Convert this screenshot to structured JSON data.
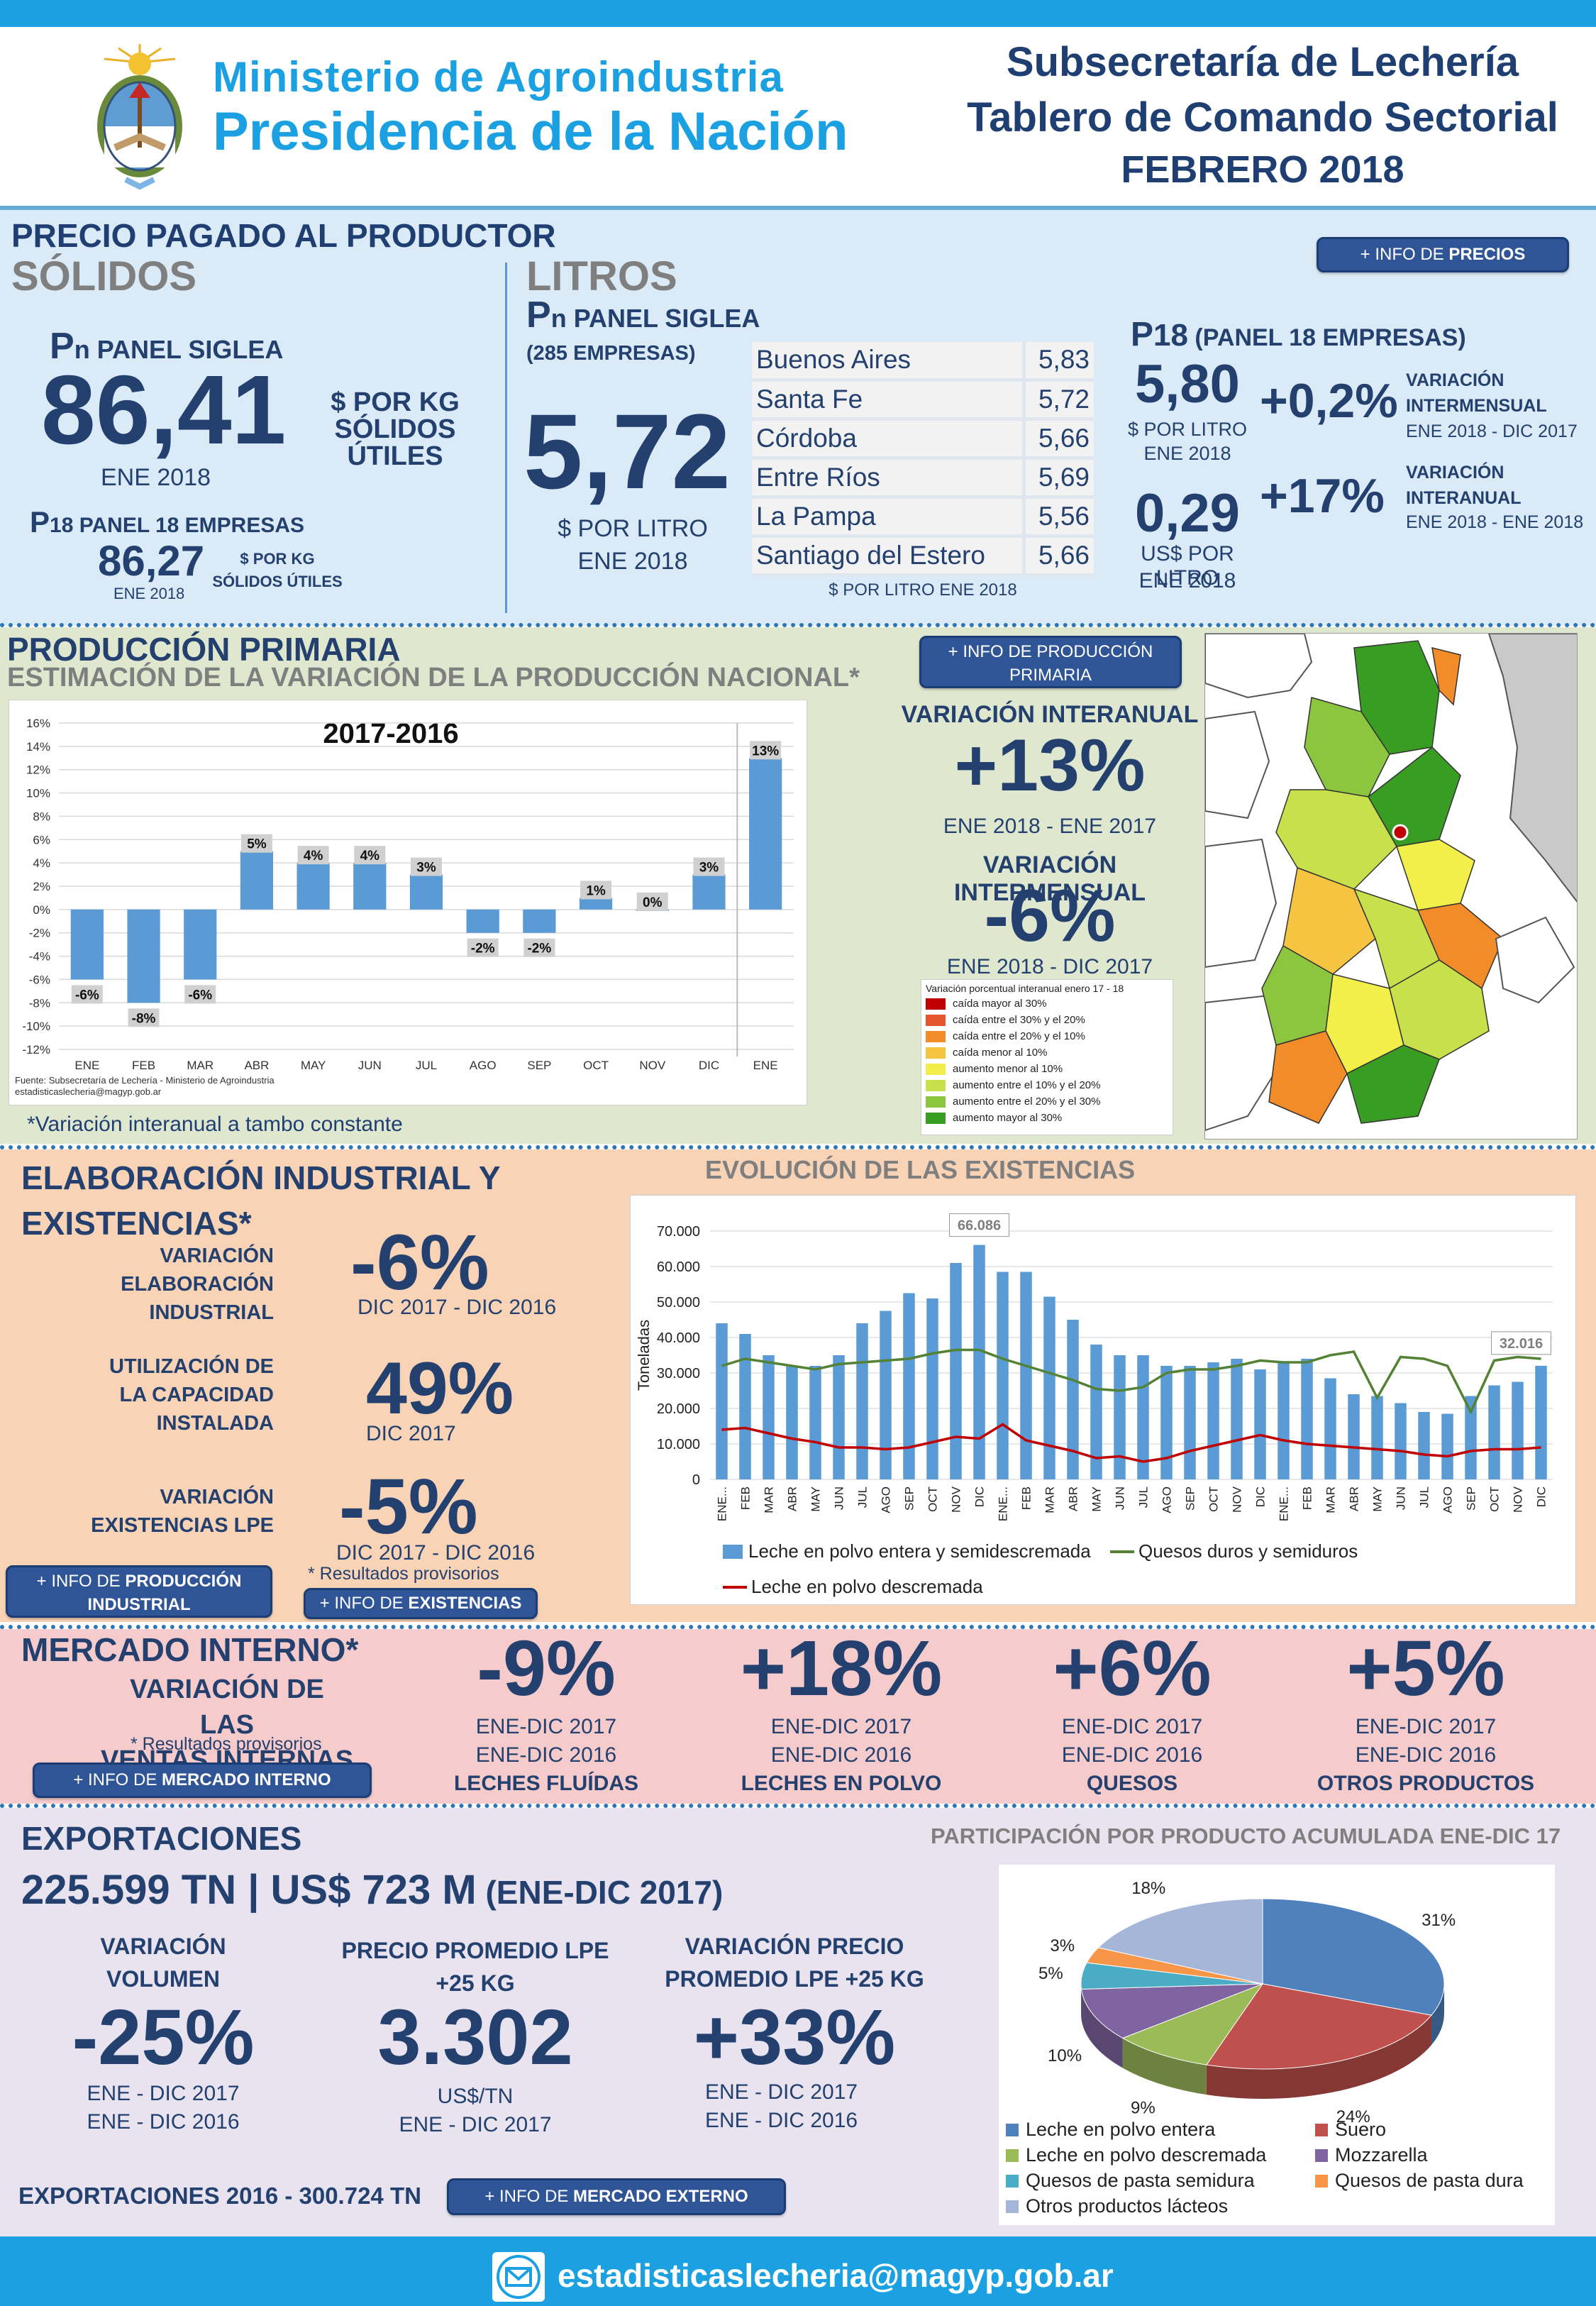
{
  "colors": {
    "banner": "#1ba1e2",
    "header_blue": "#1f3f73",
    "precio_bg": "#daeaf6",
    "prod_bg": "#dfe8cf",
    "ind_bg": "#f9d3b6",
    "mercado_bg": "#f6cbcb",
    "export_bg": "#e8e3ee",
    "bar_blue": "#5b9bd5"
  },
  "header": {
    "ministry_line1": "Ministerio de Agroindustria",
    "ministry_line2": "Presidencia de la Nación",
    "title_line1": "Subsecretaría de Lechería",
    "title_line2": "Tablero de Comando Sectorial",
    "title_line3": "FEBRERO 2018"
  },
  "precio": {
    "heading": "PRECIO PAGADO AL PRODUCTOR",
    "info_button_prefix": "+ INFO DE ",
    "info_button_bold": "PRECIOS",
    "solidos": {
      "title": "SÓLIDOS",
      "pn_label_p": "P",
      "pn_label_n": "n",
      "pn_label_rest": " PANEL SIGLEA",
      "value": "86,41",
      "unit_line1": "$ POR KG",
      "unit_line2": "SÓLIDOS ÚTILES",
      "period": "ENE 2018",
      "p18_p": "P",
      "p18_sub": "18",
      "p18_rest": " PANEL 18 EMPRESAS",
      "p18_value": "86,27",
      "p18_unit1": "$ POR KG",
      "p18_unit2": "SÓLIDOS ÚTILES",
      "p18_period": "ENE 2018"
    },
    "litros": {
      "title": "LITROS",
      "pn_p": "P",
      "pn_n": "n",
      "pn_rest": " PANEL SIGLEA",
      "empresas": "(285 EMPRESAS)",
      "value": "5,72",
      "unit": "$ POR LITRO",
      "period": "ENE 2018",
      "provinces": [
        {
          "name": "Buenos Aires",
          "value": "5,83"
        },
        {
          "name": "Santa Fe",
          "value": "5,72"
        },
        {
          "name": "Córdoba",
          "value": "5,66"
        },
        {
          "name": "Entre Ríos",
          "value": "5,69"
        },
        {
          "name": "La Pampa",
          "value": "5,56"
        },
        {
          "name": "Santiago del Estero",
          "value": "5,66"
        }
      ],
      "table_note": "$ POR LITRO ENE 2018"
    },
    "p18": {
      "label_p": "P",
      "label_sub": "18",
      "label_rest": " (PANEL 18 EMPRESAS)",
      "v1": "5,80",
      "v1_unit": "$ POR LITRO",
      "v1_period": "ENE 2018",
      "v2": "0,29",
      "v2_unit": "US$ POR LITRO",
      "v2_period": "ENE 2018",
      "var1": "+0,2%",
      "var1_l1": "VARIACIÓN",
      "var1_l2": "INTERMENSUAL",
      "var1_period": "ENE 2018 - DIC 2017",
      "var2": "+17%",
      "var2_l1": "VARIACIÓN",
      "var2_l2": "INTERANUAL",
      "var2_period": "ENE 2018 - ENE 2018"
    }
  },
  "produccion": {
    "heading": "PRODUCCIÓN PRIMARIA",
    "subheading": "ESTIMACIÓN DE LA VARIACIÓN DE LA PRODUCCIÓN NACIONAL*",
    "info_line1": "+ INFO DE PRODUCCIÓN",
    "info_line2": "PRIMARIA",
    "interanual_label": "VARIACIÓN INTERANUAL",
    "interanual_value": "+13%",
    "interanual_period": "ENE 2018 - ENE 2017",
    "intermensual_label": "VARIACIÓN INTERMENSUAL",
    "intermensual_value": "-6%",
    "intermensual_period": "ENE 2018 - DIC 2017",
    "footnote": "*Variación interanual a tambo constante",
    "map_legend_title": "Variación porcentual interanual enero 17 - 18",
    "map_legend": [
      {
        "label": "caída mayor al 30%",
        "color": "#c00000"
      },
      {
        "label": "caída entre el 30% y el 20%",
        "color": "#e4572e"
      },
      {
        "label": "caída entre el 20% y el 10%",
        "color": "#f28c28"
      },
      {
        "label": "caída menor al 10%",
        "color": "#f5c542"
      },
      {
        "label": "aumento menor al 10%",
        "color": "#f2ef4a"
      },
      {
        "label": "aumento entre el 10% y el 20%",
        "color": "#c8e04c"
      },
      {
        "label": "aumento entre el 20% y el 30%",
        "color": "#8cc63f"
      },
      {
        "label": "aumento mayor al 30%",
        "color": "#3a9d23"
      }
    ]
  },
  "industrial": {
    "heading_line1": "ELABORACIÓN INDUSTRIAL Y",
    "heading_line2": "EXISTENCIAS*",
    "m1_l1": "VARIACIÓN",
    "m1_l2": "ELABORACIÓN",
    "m1_l3": "INDUSTRIAL",
    "m1_value": "-6%",
    "m1_period": "DIC 2017 - DIC 2016",
    "m2_l1": "UTILIZACIÓN DE",
    "m2_l2": "LA CAPACIDAD",
    "m2_l3": "INSTALADA",
    "m2_value": "49%",
    "m2_period": "DIC 2017",
    "m3_l1": "VARIACIÓN",
    "m3_l2": "EXISTENCIAS LPE",
    "m3_value": "-5%",
    "m3_period": "DIC 2017 - DIC 2016",
    "provisional": "* Resultados provisorios",
    "btn1_prefix": "+ INFO DE ",
    "btn1_bold": "PRODUCCIÓN",
    "btn1_line2": "INDUSTRIAL",
    "btn2_prefix": "+ INFO DE ",
    "btn2_bold": "EXISTENCIAS",
    "chart_title": "EVOLUCIÓN DE LAS EXISTENCIAS"
  },
  "mercado": {
    "heading": "MERCADO INTERNO*",
    "sub_line1": "VARIACIÓN DE LAS",
    "sub_line2": "VENTAS INTERNAS",
    "provisional": "* Resultados provisorios",
    "btn_prefix": "+ INFO DE ",
    "btn_bold": "MERCADO INTERNO",
    "items": [
      {
        "value": "-9%",
        "p1": "ENE-DIC 2017",
        "p2": "ENE-DIC 2016",
        "label": "LECHES FLUÍDAS"
      },
      {
        "value": "+18%",
        "p1": "ENE-DIC 2017",
        "p2": "ENE-DIC 2016",
        "label": "LECHES EN POLVO"
      },
      {
        "value": "+6%",
        "p1": "ENE-DIC 2017",
        "p2": "ENE-DIC 2016",
        "label": "QUESOS"
      },
      {
        "value": "+5%",
        "p1": "ENE-DIC 2017",
        "p2": "ENE-DIC 2016",
        "label": "OTROS PRODUCTOS"
      }
    ]
  },
  "exportaciones": {
    "heading": "EXPORTACIONES",
    "totals": "225.599 TN | US$ 723 M",
    "totals_period": " (ENE-DIC 2017)",
    "m1_l1": "VARIACIÓN",
    "m1_l2": "VOLUMEN",
    "m1_value": "-25%",
    "m1_p1": "ENE - DIC 2017",
    "m1_p2": "ENE - DIC 2016",
    "m2_l1": "PRECIO PROMEDIO LPE",
    "m2_l2": "+25 KG",
    "m2_value": "3.302",
    "m2_p1": "US$/TN",
    "m2_p2": "ENE - DIC 2017",
    "m3_l1": "VARIACIÓN PRECIO",
    "m3_l2": "PROMEDIO LPE +25 KG",
    "m3_value": "+33%",
    "m3_p1": "ENE - DIC 2017",
    "m3_p2": "ENE - DIC 2016",
    "exp2016": "EXPORTACIONES 2016 - 300.724 TN",
    "btn_prefix": "+ INFO DE ",
    "btn_bold": "MERCADO EXTERNO",
    "pie_title": "PARTICIPACIÓN POR PRODUCTO ACUMULADA ENE-DIC 17"
  },
  "footer": {
    "email": "estadisticaslecheria@magyp.gob.ar"
  },
  "chart_data": [
    {
      "type": "bar",
      "title": "2017-2016",
      "categories": [
        "ENE",
        "FEB",
        "MAR",
        "ABR",
        "MAY",
        "JUN",
        "JUL",
        "AGO",
        "SEP",
        "OCT",
        "NOV",
        "DIC",
        "ENE"
      ],
      "values": [
        -6,
        -8,
        -6,
        5,
        4,
        4,
        3,
        -2,
        -2,
        1,
        0,
        3,
        13
      ],
      "data_labels": [
        "-6%",
        "-8%",
        "-6%",
        "5%",
        "4%",
        "4%",
        "3%",
        "-2%",
        "-2%",
        "1%",
        "0%",
        "3%",
        "13%"
      ],
      "ylim": [
        -12,
        16
      ],
      "yticks": [
        "16%",
        "14%",
        "12%",
        "10%",
        "8%",
        "6%",
        "4%",
        "2%",
        "0%",
        "-2%",
        "-4%",
        "-6%",
        "-8%",
        "-10%",
        "-12%"
      ],
      "source_line1": "Fuente: Subsecretaría de Lechería - Ministerio de Agroindustria",
      "source_line2": "estadisticaslecheria@magyp.gob.ar"
    },
    {
      "type": "bar+line",
      "title": "EVOLUCIÓN DE LAS EXISTENCIAS",
      "ylabel": "Toneladas",
      "ylim": [
        0,
        70000
      ],
      "yticks": [
        "70.000",
        "60.000",
        "50.000",
        "40.000",
        "30.000",
        "20.000",
        "10.000",
        "0"
      ],
      "categories": [
        "ENE...",
        "FEB",
        "MAR",
        "ABR",
        "MAY",
        "JUN",
        "JUL",
        "AGO",
        "SEP",
        "OCT",
        "NOV",
        "DIC",
        "ENE...",
        "FEB",
        "MAR",
        "ABR",
        "MAY",
        "JUN",
        "JUL",
        "AGO",
        "SEP",
        "OCT",
        "NOV",
        "DIC",
        "ENE...",
        "FEB",
        "MAR",
        "ABR",
        "MAY",
        "JUN",
        "JUL",
        "AGO",
        "SEP",
        "OCT",
        "NOV",
        "DIC"
      ],
      "series": [
        {
          "name": "Leche en polvo entera y semidescremada",
          "kind": "bar",
          "color": "#5b9bd5",
          "values": [
            44000,
            41000,
            35000,
            32000,
            32000,
            35000,
            44000,
            47500,
            52500,
            51000,
            61000,
            66086,
            58500,
            58500,
            51500,
            45000,
            38000,
            35000,
            35000,
            32000,
            32000,
            33000,
            34000,
            31000,
            33000,
            34000,
            28500,
            24000,
            23500,
            21500,
            19000,
            18500,
            23500,
            26500,
            27500,
            32016
          ]
        },
        {
          "name": "Quesos duros y semiduros",
          "kind": "line",
          "color": "#548235",
          "values": [
            32000,
            34000,
            33000,
            32000,
            31000,
            32500,
            33000,
            33500,
            34000,
            35500,
            36500,
            36500,
            34000,
            32000,
            30000,
            28000,
            25500,
            25000,
            26000,
            30000,
            31000,
            31000,
            32000,
            33500,
            33000,
            33000,
            35000,
            36000,
            23000,
            34500,
            34000,
            32000,
            19000,
            33500,
            34500,
            34000
          ]
        },
        {
          "name": "Leche en polvo descremada",
          "kind": "line",
          "color": "#c00000",
          "values": [
            14000,
            14500,
            13000,
            11500,
            10500,
            9000,
            9000,
            8500,
            9000,
            10500,
            12000,
            11500,
            15500,
            11000,
            9500,
            8000,
            6000,
            6500,
            5000,
            6000,
            8000,
            9500,
            11000,
            12500,
            11000,
            10000,
            9500,
            9000,
            8500,
            8000,
            7000,
            6500,
            8000,
            8500,
            8500,
            9000
          ]
        }
      ],
      "callouts": [
        "66.086",
        "32.016"
      ]
    },
    {
      "type": "pie",
      "title": "PARTICIPACIÓN POR PRODUCTO ACUMULADA ENE-DIC 17",
      "labels": [
        "Leche en polvo entera",
        "Suero",
        "Leche en polvo descremada",
        "Mozzarella",
        "Quesos de pasta semidura",
        "Quesos de pasta dura",
        "Otros productos lácteos"
      ],
      "values": [
        31,
        24,
        9,
        10,
        5,
        3,
        18
      ],
      "value_labels": [
        "31%",
        "24%",
        "9%",
        "10%",
        "5%",
        "3%",
        "18%"
      ],
      "colors": [
        "#4f81bd",
        "#c0504d",
        "#9bbb59",
        "#8064a2",
        "#4bacc6",
        "#f79646",
        "#a5b6d8"
      ]
    }
  ]
}
